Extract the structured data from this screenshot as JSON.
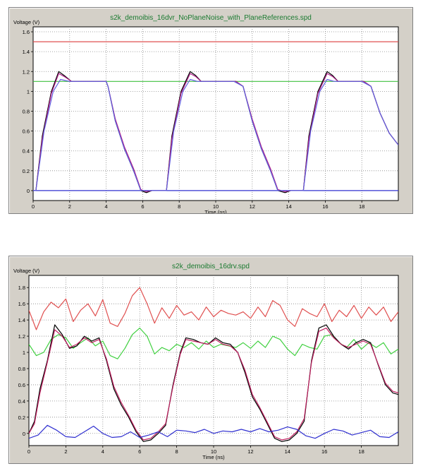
{
  "chart_data": [
    {
      "type": "line",
      "title": "s2k_demoibis_16dvr_NoPlaneNoise_with_PlaneReferences.spd",
      "ylabel": "Voltage (V)",
      "xlabel": "Time (ns)",
      "xlim": [
        0,
        20
      ],
      "ylim": [
        -0.1,
        1.65
      ],
      "xticks": [
        0,
        2,
        4,
        6,
        8,
        10,
        12,
        14,
        16,
        18
      ],
      "yticks": [
        0,
        0.2,
        0.4,
        0.6,
        0.8,
        1,
        1.2,
        1.4,
        1.6
      ],
      "grid": true,
      "colors": {
        "red": "#e05050",
        "green": "#40c040",
        "black": "#000000",
        "purple": "#b0208a",
        "blue": "#3030d0",
        "darkred": "#b00000"
      },
      "series": [
        {
          "color": "#e05050",
          "x": [
            0,
            20
          ],
          "y": [
            1.5,
            1.5
          ]
        },
        {
          "color": "#40c040",
          "x": [
            0,
            20
          ],
          "y": [
            1.1,
            1.1
          ]
        },
        {
          "color": "#000000",
          "x": [
            0,
            0.15,
            0.5,
            1.0,
            1.4,
            1.7,
            2.1,
            2.6,
            3.0,
            3.5,
            4.0,
            4.1,
            4.5,
            5.0,
            5.5,
            5.9,
            6.2,
            6.5,
            6.8,
            7.3,
            7.6,
            8.1,
            8.6,
            8.9,
            9.2,
            9.6,
            10.1,
            10.6,
            11.1,
            11.5,
            12.0,
            12.5,
            13.0,
            13.4,
            13.8,
            14.1,
            14.4,
            14.8,
            15.1,
            15.6,
            16.1,
            16.4,
            16.7,
            17.1,
            17.6,
            18.1,
            18.5,
            19.0,
            19.5,
            20.0
          ],
          "y": [
            0,
            0,
            0.55,
            1.0,
            1.2,
            1.16,
            1.1,
            1.1,
            1.1,
            1.1,
            1.1,
            1.05,
            0.7,
            0.42,
            0.2,
            0.0,
            -0.02,
            0,
            0,
            0,
            0.55,
            1.0,
            1.2,
            1.16,
            1.1,
            1.1,
            1.1,
            1.1,
            1.1,
            1.05,
            0.7,
            0.42,
            0.2,
            0.0,
            -0.02,
            0,
            0,
            0,
            0.55,
            1.0,
            1.2,
            1.16,
            1.1,
            1.1,
            1.1,
            1.1,
            1.05,
            0.78,
            0.58,
            0.46
          ]
        },
        {
          "color": "#b0208a",
          "x": [
            0,
            0.15,
            0.5,
            1.0,
            1.4,
            1.7,
            2.1,
            2.6,
            3.0,
            3.5,
            4.0,
            4.1,
            4.5,
            5.0,
            5.5,
            5.9,
            6.2,
            6.5,
            6.8,
            7.3,
            7.6,
            8.1,
            8.6,
            8.9,
            9.2,
            9.6,
            10.1,
            10.6,
            11.1,
            11.5,
            12.0,
            12.5,
            13.0,
            13.4,
            13.8,
            14.1,
            14.4,
            14.8,
            15.1,
            15.6,
            16.1,
            16.4,
            16.7,
            17.1,
            17.6,
            18.1,
            18.5,
            19.0,
            19.5,
            20.0
          ],
          "y": [
            0,
            0,
            0.52,
            0.98,
            1.18,
            1.15,
            1.1,
            1.1,
            1.1,
            1.1,
            1.1,
            1.05,
            0.72,
            0.44,
            0.22,
            0.01,
            -0.01,
            0,
            0,
            0,
            0.52,
            0.98,
            1.18,
            1.15,
            1.1,
            1.1,
            1.1,
            1.1,
            1.1,
            1.05,
            0.72,
            0.44,
            0.22,
            0.01,
            -0.01,
            0,
            0,
            0,
            0.52,
            0.98,
            1.18,
            1.15,
            1.1,
            1.1,
            1.1,
            1.1,
            1.05,
            0.78,
            0.58,
            0.46
          ]
        },
        {
          "color": "#3030d0",
          "x": [
            0,
            20
          ],
          "y": [
            0,
            0
          ]
        },
        {
          "color": "#6060e0",
          "x": [
            0,
            0.15,
            0.6,
            1.1,
            1.5,
            2.0,
            2.5,
            3.0,
            3.5,
            4.0,
            4.1,
            4.5,
            5.0,
            5.5,
            5.9,
            6.3,
            6.8,
            7.3,
            7.7,
            8.2,
            8.6,
            9.0,
            9.5,
            10.0,
            10.5,
            11.0,
            11.5,
            12.0,
            12.5,
            13.0,
            13.4,
            13.8,
            14.3,
            14.8,
            15.2,
            15.7,
            16.1,
            16.5,
            17.0,
            17.5,
            18.0,
            18.5,
            19.0,
            19.5,
            20.0
          ],
          "y": [
            0,
            0,
            0.6,
            1.0,
            1.12,
            1.1,
            1.1,
            1.1,
            1.1,
            1.1,
            1.05,
            0.7,
            0.42,
            0.2,
            0.0,
            0,
            0,
            0,
            0.6,
            1.0,
            1.12,
            1.1,
            1.1,
            1.1,
            1.1,
            1.1,
            1.05,
            0.7,
            0.42,
            0.2,
            0.0,
            0,
            0,
            0,
            0.6,
            1.0,
            1.12,
            1.1,
            1.1,
            1.1,
            1.1,
            1.05,
            0.78,
            0.58,
            0.46
          ]
        }
      ]
    },
    {
      "type": "line",
      "title": "s2k_demoibis_16drv.spd",
      "ylabel": "Voltage (V)",
      "xlabel": "Time (ns)",
      "xlim": [
        0,
        20
      ],
      "ylim": [
        -0.15,
        1.95
      ],
      "xticks": [
        0,
        2,
        4,
        6,
        8,
        10,
        12,
        14,
        16,
        18
      ],
      "yticks": [
        0,
        0.2,
        0.4,
        0.6,
        0.8,
        1,
        1.2,
        1.4,
        1.6,
        1.8
      ],
      "grid": true,
      "series": [
        {
          "color": "#e05050",
          "x": [
            0,
            0.4,
            0.8,
            1.2,
            1.6,
            2.0,
            2.4,
            2.8,
            3.2,
            3.6,
            4.0,
            4.4,
            4.8,
            5.2,
            5.6,
            6.0,
            6.4,
            6.8,
            7.2,
            7.6,
            8.0,
            8.4,
            8.8,
            9.2,
            9.6,
            10.0,
            10.4,
            10.8,
            11.2,
            11.6,
            12.0,
            12.4,
            12.8,
            13.2,
            13.6,
            14.0,
            14.4,
            14.8,
            15.2,
            15.6,
            16.0,
            16.4,
            16.8,
            17.2,
            17.6,
            18.0,
            18.4,
            18.8,
            19.2,
            19.6,
            20.0
          ],
          "y": [
            1.52,
            1.28,
            1.5,
            1.62,
            1.55,
            1.66,
            1.38,
            1.52,
            1.6,
            1.45,
            1.65,
            1.36,
            1.32,
            1.48,
            1.7,
            1.8,
            1.6,
            1.36,
            1.55,
            1.42,
            1.58,
            1.46,
            1.5,
            1.4,
            1.56,
            1.44,
            1.52,
            1.48,
            1.46,
            1.5,
            1.42,
            1.56,
            1.44,
            1.64,
            1.58,
            1.4,
            1.32,
            1.54,
            1.48,
            1.44,
            1.6,
            1.38,
            1.52,
            1.44,
            1.58,
            1.42,
            1.56,
            1.46,
            1.56,
            1.38,
            1.5
          ]
        },
        {
          "color": "#40d040",
          "x": [
            0,
            0.4,
            0.8,
            1.2,
            1.6,
            2.0,
            2.4,
            2.8,
            3.2,
            3.6,
            4.0,
            4.4,
            4.8,
            5.2,
            5.6,
            6.0,
            6.4,
            6.8,
            7.2,
            7.6,
            8.0,
            8.4,
            8.8,
            9.2,
            9.6,
            10.0,
            10.4,
            10.8,
            11.2,
            11.6,
            12.0,
            12.4,
            12.8,
            13.2,
            13.6,
            14.0,
            14.4,
            14.8,
            15.2,
            15.6,
            16.0,
            16.4,
            16.8,
            17.2,
            17.6,
            18.0,
            18.4,
            18.8,
            19.2,
            19.6,
            20.0
          ],
          "y": [
            1.1,
            0.96,
            1.0,
            1.16,
            1.22,
            1.18,
            1.05,
            1.12,
            1.18,
            1.08,
            1.14,
            0.96,
            0.92,
            1.05,
            1.22,
            1.3,
            1.2,
            0.98,
            1.06,
            1.02,
            1.1,
            1.06,
            1.12,
            1.04,
            1.14,
            1.06,
            1.1,
            1.08,
            1.06,
            1.12,
            1.05,
            1.14,
            1.06,
            1.2,
            1.16,
            1.04,
            0.96,
            1.1,
            1.06,
            1.04,
            1.2,
            1.22,
            1.12,
            1.06,
            1.16,
            1.04,
            1.12,
            1.06,
            1.12,
            0.98,
            1.04
          ]
        },
        {
          "color": "#000000",
          "x": [
            0,
            0.3,
            0.6,
            1.0,
            1.4,
            1.8,
            2.2,
            2.6,
            3.0,
            3.4,
            3.8,
            4.2,
            4.6,
            5.0,
            5.4,
            5.8,
            6.2,
            6.6,
            7.0,
            7.4,
            7.8,
            8.2,
            8.5,
            8.9,
            9.3,
            9.7,
            10.1,
            10.5,
            10.9,
            11.3,
            11.7,
            12.1,
            12.5,
            12.9,
            13.3,
            13.7,
            14.1,
            14.5,
            14.9,
            15.3,
            15.7,
            16.1,
            16.5,
            16.9,
            17.3,
            17.7,
            18.1,
            18.5,
            18.9,
            19.3,
            19.7,
            20.0
          ],
          "y": [
            0,
            0.15,
            0.55,
            0.9,
            1.34,
            1.22,
            1.05,
            1.08,
            1.2,
            1.14,
            1.18,
            0.9,
            0.55,
            0.35,
            0.2,
            0.02,
            -0.1,
            -0.08,
            0.0,
            0.1,
            0.6,
            1.0,
            1.18,
            1.16,
            1.12,
            1.1,
            1.18,
            1.12,
            1.1,
            1.0,
            0.75,
            0.45,
            0.3,
            0.12,
            -0.06,
            -0.1,
            -0.08,
            0.0,
            0.15,
            0.9,
            1.3,
            1.34,
            1.2,
            1.1,
            1.04,
            1.12,
            1.16,
            1.12,
            0.85,
            0.6,
            0.5,
            0.48
          ]
        },
        {
          "color": "#c02060",
          "x": [
            0,
            0.3,
            0.6,
            1.0,
            1.4,
            1.8,
            2.2,
            2.6,
            3.0,
            3.4,
            3.8,
            4.2,
            4.6,
            5.0,
            5.4,
            5.8,
            6.2,
            6.6,
            7.0,
            7.4,
            7.8,
            8.2,
            8.5,
            8.9,
            9.3,
            9.7,
            10.1,
            10.5,
            10.9,
            11.3,
            11.7,
            12.1,
            12.5,
            12.9,
            13.3,
            13.7,
            14.1,
            14.5,
            14.9,
            15.3,
            15.7,
            16.1,
            16.5,
            16.9,
            17.3,
            17.7,
            18.1,
            18.5,
            18.9,
            19.3,
            19.7,
            20.0
          ],
          "y": [
            0,
            0.12,
            0.5,
            0.88,
            1.28,
            1.2,
            1.06,
            1.1,
            1.18,
            1.12,
            1.16,
            0.92,
            0.58,
            0.38,
            0.22,
            0.04,
            -0.08,
            -0.06,
            0.02,
            0.12,
            0.58,
            0.98,
            1.16,
            1.14,
            1.12,
            1.1,
            1.16,
            1.1,
            1.08,
            1.0,
            0.78,
            0.48,
            0.32,
            0.14,
            -0.04,
            -0.08,
            -0.06,
            0.02,
            0.18,
            0.88,
            1.26,
            1.3,
            1.18,
            1.1,
            1.06,
            1.1,
            1.14,
            1.1,
            0.86,
            0.62,
            0.52,
            0.5
          ]
        },
        {
          "color": "#3030d0",
          "x": [
            0,
            0.5,
            1.0,
            1.5,
            2.0,
            2.5,
            3.0,
            3.5,
            4.0,
            4.5,
            5.0,
            5.5,
            6.0,
            6.5,
            7.0,
            7.5,
            8.0,
            8.5,
            9.0,
            9.5,
            10.0,
            10.5,
            11.0,
            11.5,
            12.0,
            12.5,
            13.0,
            13.5,
            14.0,
            14.5,
            15.0,
            15.5,
            16.0,
            16.5,
            17.0,
            17.5,
            18.0,
            18.5,
            19.0,
            19.5,
            20.0
          ],
          "y": [
            -0.06,
            -0.02,
            0.1,
            0.04,
            -0.04,
            -0.05,
            0.02,
            0.09,
            0.0,
            -0.05,
            -0.04,
            0.02,
            -0.05,
            -0.02,
            0.02,
            -0.04,
            0.04,
            0.03,
            0.01,
            0.05,
            0.0,
            0.03,
            0.02,
            0.05,
            0.02,
            0.06,
            0.02,
            0.04,
            0.08,
            0.05,
            -0.03,
            -0.06,
            0.0,
            0.05,
            0.03,
            -0.02,
            0.01,
            0.04,
            -0.04,
            -0.05,
            0.02
          ]
        }
      ]
    }
  ]
}
